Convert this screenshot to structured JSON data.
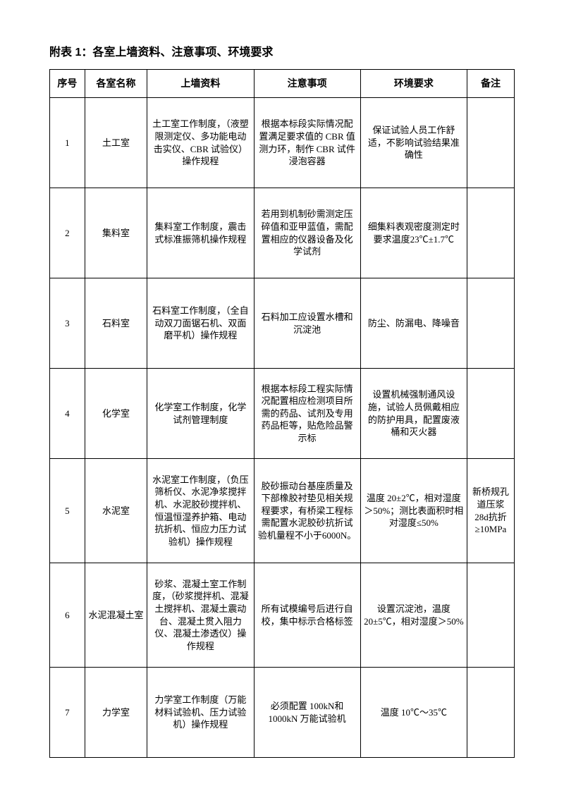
{
  "title": "附表 1：各室上墙资料、注意事项、环境要求",
  "headers": {
    "idx": "序号",
    "name": "各室名称",
    "material": "上墙资料",
    "notice": "注意事项",
    "env": "环境要求",
    "remark": "备注"
  },
  "rows": [
    {
      "idx": "1",
      "name": "土工室",
      "material": "土工室工作制度，（液塑限测定仪、多功能电动击实仪、CBR 试验仪）操作规程",
      "notice": "根据本标段实际情况配置满足要求值的 CBR 值测力环，制作 CBR 试件浸泡容器",
      "env": "保证试验人员工作舒适，不影响试验结果准确性",
      "remark": ""
    },
    {
      "idx": "2",
      "name": "集料室",
      "material": "集料室工作制度，震击式标准振筛机操作规程",
      "notice": "若用到机制砂需测定压碎值和亚甲蓝值，需配置相应的仪器设备及化学试剂",
      "env": "细集料表观密度测定时要求温度23℃±1.7℃",
      "remark": ""
    },
    {
      "idx": "3",
      "name": "石料室",
      "material": "石料室工作制度，（全自动双刀面锯石机、双面磨平机）操作规程",
      "notice": "石料加工应设置水槽和沉淀池",
      "env": "防尘、防漏电、降噪音",
      "remark": ""
    },
    {
      "idx": "4",
      "name": "化学室",
      "material": "化学室工作制度，化学试剂管理制度",
      "notice": "根据本标段工程实际情况配置相应检测项目所需的药品、试剂及专用药品柜等，贴危险品警示标",
      "env": "设置机械强制通风设施，试验人员佩戴相应的防护用具，配置废液桶和灭火器",
      "remark": ""
    },
    {
      "idx": "5",
      "name": "水泥室",
      "material": "水泥室工作制度，（负压筛析仪、水泥净浆搅拌机、水泥胶砂搅拌机、恒温恒湿养护箱、电动抗折机、恒应力压力试验机）操作规程",
      "notice": "胶砂振动台基座质量及下部橡胶衬垫见相关规程要求，有桥梁工程标需配置水泥胶砂抗折试验机量程不小于6000N。",
      "env": "温度 20±2℃，相对湿度＞50%；测比表面积时相对湿度≤50%",
      "remark": "新桥规孔道压浆 28d抗折≥10MPa",
      "tall": true
    },
    {
      "idx": "6",
      "name": "水泥混凝土室",
      "material": "砂浆、混凝土室工作制度，（砂浆搅拌机、混凝土搅拌机、混凝土震动台、混凝土贯入阻力仪、混凝土渗透仪）操作规程",
      "notice": "所有试模编号后进行自校，集中标示合格标签",
      "env": "设置沉淀池，温度20±5℃，相对湿度＞50%",
      "remark": "",
      "tall": true
    },
    {
      "idx": "7",
      "name": "力学室",
      "material": "力学室工作制度（万能材料试验机、压力试验机）操作规程",
      "notice": "必须配置 100kN和 1000kN 万能试验机",
      "env": "温度 10℃～35℃",
      "remark": ""
    }
  ]
}
